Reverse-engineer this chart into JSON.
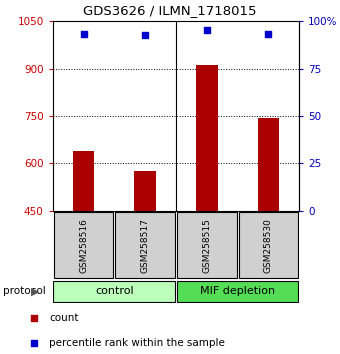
{
  "title": "GDS3626 / ILMN_1718015",
  "samples": [
    "GSM258516",
    "GSM258517",
    "GSM258515",
    "GSM258530"
  ],
  "bar_values": [
    638,
    575,
    910,
    745
  ],
  "percentile_values": [
    93.5,
    92.5,
    95.5,
    93.5
  ],
  "bar_color": "#aa0000",
  "dot_color": "#0000cc",
  "left_ylim": [
    450,
    1050
  ],
  "left_yticks": [
    450,
    600,
    750,
    900,
    1050
  ],
  "right_ylim": [
    0,
    100
  ],
  "right_yticks": [
    0,
    25,
    50,
    75,
    100
  ],
  "right_yticklabels": [
    "0",
    "25",
    "50",
    "75",
    "100%"
  ],
  "groups": [
    {
      "label": "control",
      "color": "#bbffbb"
    },
    {
      "label": "MIF depletion",
      "color": "#55dd55"
    }
  ],
  "group_label": "protocol",
  "legend_count_label": "count",
  "legend_pct_label": "percentile rank within the sample",
  "bar_width": 0.35,
  "background_color": "#ffffff",
  "plot_bg_color": "#ffffff",
  "sample_box_color": "#d0d0d0",
  "left_tick_color": "#cc0000",
  "right_tick_color": "#0000bb"
}
